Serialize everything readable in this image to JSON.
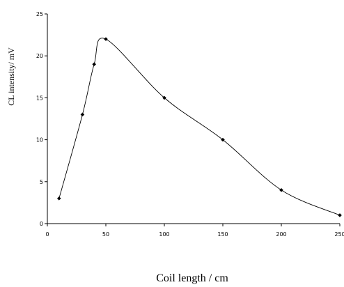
{
  "chart_data": {
    "type": "line",
    "title": "",
    "xlabel": "Coil length / cm",
    "ylabel": "CL intensity/ mV",
    "xlim": [
      0,
      250
    ],
    "ylim": [
      0,
      25
    ],
    "x_ticks": [
      0,
      50,
      100,
      150,
      200,
      250
    ],
    "x_tick_labels": [
      "0",
      "50",
      "100",
      "150",
      "200",
      "250"
    ],
    "y_ticks": [
      0,
      5,
      10,
      15,
      20,
      25
    ],
    "y_tick_labels": [
      "0",
      "5",
      "10",
      "15",
      "20",
      "25"
    ],
    "grid": false,
    "legend": "none",
    "series": [
      {
        "x": [
          10,
          30,
          40,
          50,
          100,
          150,
          200,
          250
        ],
        "y": [
          3,
          13,
          19,
          22,
          15,
          10,
          4,
          1
        ],
        "color": "#000000",
        "smooth": true,
        "marker": "diamond"
      }
    ]
  }
}
